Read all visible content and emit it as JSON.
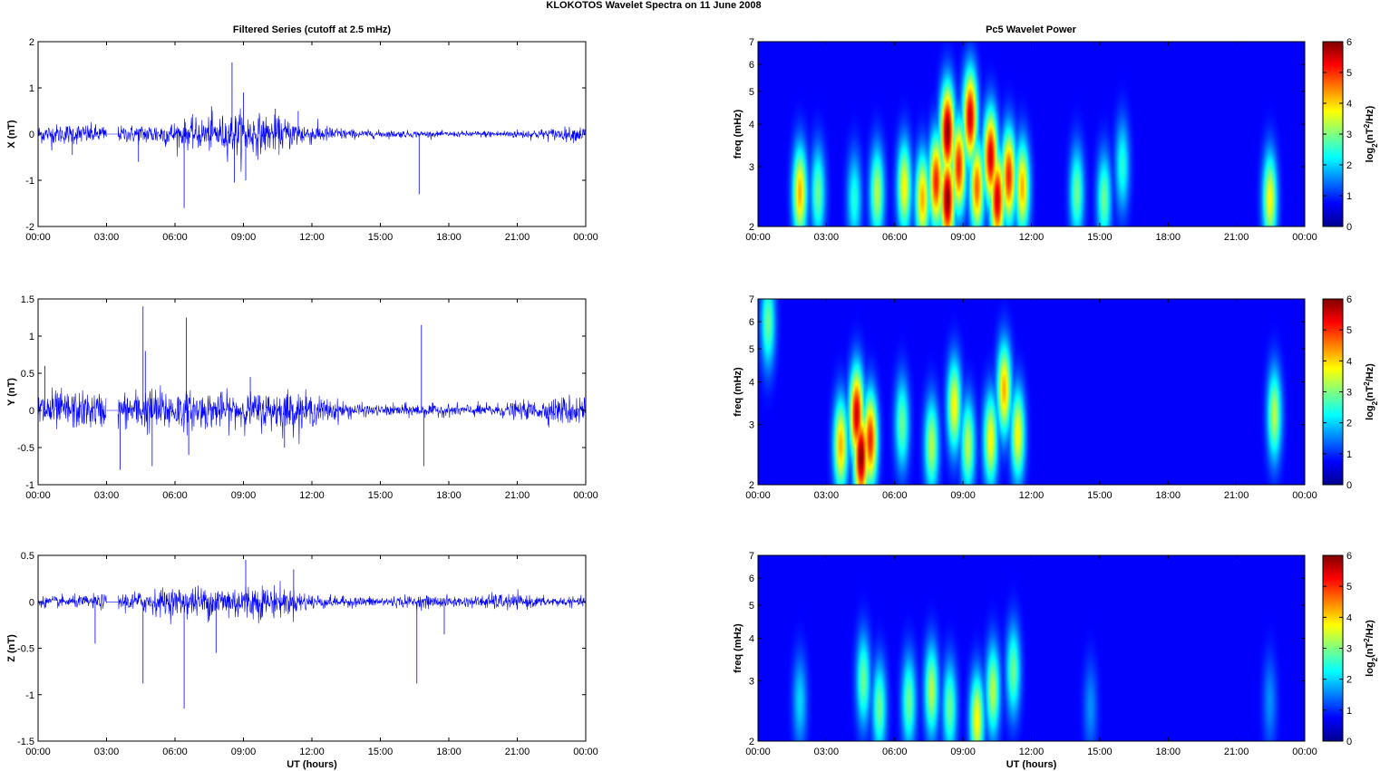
{
  "figure": {
    "title": "KLOKOTOS Wavelet Spectra on 11 June     2008",
    "left_column_title": "Filtered Series (cutoff at 2.5 mHz)",
    "right_column_title": "Pc5 Wavelet Power"
  },
  "colors": {
    "trace": "#0000ff",
    "axis": "#000000",
    "background": "#ffffff"
  },
  "chart_data": [
    {
      "type": "line",
      "panel": "time-series-x",
      "ylabel": "X (nT)",
      "xlabel": "",
      "ylim": [
        -2,
        2
      ],
      "yticks": [
        "-2",
        "-1",
        "0",
        "1",
        "2"
      ],
      "xticks": [
        "00:00",
        "03:00",
        "06:00",
        "09:00",
        "12:00",
        "15:00",
        "18:00",
        "21:00",
        "00:00"
      ],
      "xlim_hours": [
        0,
        24
      ],
      "gaps_hours": [
        [
          3.0,
          3.5
        ]
      ],
      "envelope": {
        "x_hours": [
          0,
          2,
          3.5,
          6,
          8,
          9,
          10,
          11,
          12,
          14,
          16,
          18,
          20,
          22,
          24
        ],
        "amplitude": [
          0.18,
          0.2,
          0.15,
          0.25,
          0.35,
          0.45,
          0.35,
          0.3,
          0.2,
          0.08,
          0.07,
          0.05,
          0.07,
          0.1,
          0.15
        ]
      },
      "spikes": [
        {
          "x_hours": 0.6,
          "y": -0.35
        },
        {
          "x_hours": 1.5,
          "y": -0.45
        },
        {
          "x_hours": 4.4,
          "y": -0.6
        },
        {
          "x_hours": 6.4,
          "y": -1.6
        },
        {
          "x_hours": 8.5,
          "y": 1.55
        },
        {
          "x_hours": 8.6,
          "y": -1.05
        },
        {
          "x_hours": 9.0,
          "y": 0.9
        },
        {
          "x_hours": 9.1,
          "y": -1.0
        },
        {
          "x_hours": 7.6,
          "y": 0.6
        },
        {
          "x_hours": 10.4,
          "y": 0.55
        },
        {
          "x_hours": 11.4,
          "y": 0.5
        },
        {
          "x_hours": 16.7,
          "y": -1.3
        }
      ]
    },
    {
      "type": "line",
      "panel": "time-series-y",
      "ylabel": "Y (nT)",
      "xlabel": "",
      "ylim": [
        -1,
        1.5
      ],
      "yticks": [
        "-1",
        "-0.5",
        "0",
        "0.5",
        "1",
        "1.5"
      ],
      "xticks": [
        "00:00",
        "03:00",
        "06:00",
        "09:00",
        "12:00",
        "15:00",
        "18:00",
        "21:00",
        "00:00"
      ],
      "xlim_hours": [
        0,
        24
      ],
      "gaps_hours": [
        [
          3.0,
          3.5
        ]
      ],
      "envelope": {
        "x_hours": [
          0,
          2,
          3.5,
          5,
          7,
          9,
          11,
          12,
          14,
          15,
          16,
          18,
          20,
          22,
          24
        ],
        "amplitude": [
          0.25,
          0.22,
          0.2,
          0.28,
          0.22,
          0.2,
          0.25,
          0.18,
          0.08,
          0.06,
          0.08,
          0.07,
          0.08,
          0.12,
          0.22
        ]
      },
      "spikes": [
        {
          "x_hours": 0.3,
          "y": 0.6
        },
        {
          "x_hours": 3.6,
          "y": -0.8
        },
        {
          "x_hours": 4.6,
          "y": 1.4
        },
        {
          "x_hours": 4.7,
          "y": 0.8
        },
        {
          "x_hours": 5.0,
          "y": -0.75
        },
        {
          "x_hours": 6.5,
          "y": 1.25
        },
        {
          "x_hours": 6.6,
          "y": -0.6
        },
        {
          "x_hours": 10.8,
          "y": -0.5
        },
        {
          "x_hours": 16.8,
          "y": 1.15
        },
        {
          "x_hours": 16.9,
          "y": -0.75
        },
        {
          "x_hours": 9.3,
          "y": 0.45
        }
      ]
    },
    {
      "type": "line",
      "panel": "time-series-z",
      "ylabel": "Z (nT)",
      "xlabel": "UT (hours)",
      "ylim": [
        -1.5,
        0.5
      ],
      "yticks": [
        "-1.5",
        "-1",
        "-0.5",
        "0",
        "0.5"
      ],
      "xticks": [
        "00:00",
        "03:00",
        "06:00",
        "09:00",
        "12:00",
        "15:00",
        "18:00",
        "21:00",
        "00:00"
      ],
      "xlim_hours": [
        0,
        24
      ],
      "gaps_hours": [
        [
          3.0,
          3.5
        ]
      ],
      "envelope": {
        "x_hours": [
          0,
          2,
          3.5,
          5,
          7,
          9,
          10.5,
          12,
          13,
          15,
          17,
          19,
          20,
          21,
          22,
          24
        ],
        "amplitude": [
          0.05,
          0.06,
          0.08,
          0.12,
          0.15,
          0.18,
          0.15,
          0.08,
          0.05,
          0.05,
          0.06,
          0.05,
          0.08,
          0.07,
          0.05,
          0.04
        ]
      },
      "spikes": [
        {
          "x_hours": 4.6,
          "y": -0.88
        },
        {
          "x_hours": 6.4,
          "y": -1.15
        },
        {
          "x_hours": 2.5,
          "y": -0.45
        },
        {
          "x_hours": 7.8,
          "y": -0.55
        },
        {
          "x_hours": 9.1,
          "y": 0.45
        },
        {
          "x_hours": 16.6,
          "y": -0.88
        },
        {
          "x_hours": 17.8,
          "y": -0.35
        },
        {
          "x_hours": 11.2,
          "y": 0.35
        }
      ]
    },
    {
      "type": "heatmap",
      "panel": "wavelet-x",
      "ylabel": "freq (mHz)",
      "xlabel": "",
      "ylim_mHz": [
        2,
        7
      ],
      "yscale": "log",
      "yticks": [
        "2",
        "3",
        "4",
        "5",
        "6",
        "7"
      ],
      "xticks": [
        "00:00",
        "03:00",
        "06:00",
        "09:00",
        "12:00",
        "15:00",
        "18:00",
        "21:00",
        "00:00"
      ],
      "clim": [
        0,
        6
      ],
      "colorbar_ticks": [
        "0",
        "1",
        "2",
        "3",
        "4",
        "5",
        "6"
      ],
      "colorbar_label": "log2(nT2/Hz)",
      "blobs": [
        {
          "t": 1.8,
          "f": 2.5,
          "power": 4.0
        },
        {
          "t": 2.6,
          "f": 2.5,
          "power": 2.5
        },
        {
          "t": 4.2,
          "f": 2.4,
          "power": 2.0
        },
        {
          "t": 5.2,
          "f": 2.5,
          "power": 3.0
        },
        {
          "t": 6.4,
          "f": 2.6,
          "power": 3.5
        },
        {
          "t": 7.2,
          "f": 2.4,
          "power": 4.0
        },
        {
          "t": 7.8,
          "f": 2.7,
          "power": 5.0
        },
        {
          "t": 8.3,
          "f": 3.8,
          "power": 6.0
        },
        {
          "t": 8.3,
          "f": 2.4,
          "power": 6.0
        },
        {
          "t": 8.8,
          "f": 3.0,
          "power": 5.0
        },
        {
          "t": 9.3,
          "f": 4.2,
          "power": 5.5
        },
        {
          "t": 9.6,
          "f": 2.6,
          "power": 4.5
        },
        {
          "t": 10.2,
          "f": 3.2,
          "power": 5.5
        },
        {
          "t": 10.5,
          "f": 2.4,
          "power": 5.5
        },
        {
          "t": 11.0,
          "f": 2.8,
          "power": 5.0
        },
        {
          "t": 11.6,
          "f": 2.6,
          "power": 4.0
        },
        {
          "t": 14.0,
          "f": 2.5,
          "power": 2.5
        },
        {
          "t": 15.2,
          "f": 2.4,
          "power": 2.5
        },
        {
          "t": 16.0,
          "f": 3.0,
          "power": 2.0
        },
        {
          "t": 22.5,
          "f": 2.4,
          "power": 3.5
        }
      ]
    },
    {
      "type": "heatmap",
      "panel": "wavelet-y",
      "ylabel": "freq (mHz)",
      "xlabel": "",
      "ylim_mHz": [
        2,
        7
      ],
      "yscale": "log",
      "yticks": [
        "2",
        "3",
        "4",
        "5",
        "6",
        "7"
      ],
      "xticks": [
        "00:00",
        "03:00",
        "06:00",
        "09:00",
        "12:00",
        "15:00",
        "18:00",
        "21:00",
        "00:00"
      ],
      "clim": [
        0,
        6
      ],
      "colorbar_ticks": [
        "0",
        "1",
        "2",
        "3",
        "4",
        "5",
        "6"
      ],
      "colorbar_label": "log2(nT2/Hz)",
      "blobs": [
        {
          "t": 0.4,
          "f": 6.0,
          "power": 2.5
        },
        {
          "t": 3.6,
          "f": 2.6,
          "power": 4.0
        },
        {
          "t": 4.3,
          "f": 3.2,
          "power": 5.5
        },
        {
          "t": 4.5,
          "f": 2.4,
          "power": 6.0
        },
        {
          "t": 4.9,
          "f": 2.7,
          "power": 5.0
        },
        {
          "t": 6.3,
          "f": 3.0,
          "power": 2.5
        },
        {
          "t": 7.6,
          "f": 2.6,
          "power": 3.0
        },
        {
          "t": 8.6,
          "f": 3.4,
          "power": 3.5
        },
        {
          "t": 9.2,
          "f": 2.6,
          "power": 3.0
        },
        {
          "t": 10.2,
          "f": 2.7,
          "power": 3.5
        },
        {
          "t": 10.8,
          "f": 3.8,
          "power": 4.0
        },
        {
          "t": 11.4,
          "f": 2.8,
          "power": 3.5
        },
        {
          "t": 22.7,
          "f": 3.2,
          "power": 3.0
        }
      ]
    },
    {
      "type": "heatmap",
      "panel": "wavelet-z",
      "ylabel": "freq (mHz)",
      "xlabel": "UT (hours)",
      "ylim_mHz": [
        2,
        7
      ],
      "yscale": "log",
      "yticks": [
        "2",
        "3",
        "4",
        "5",
        "6",
        "7"
      ],
      "xticks": [
        "00:00",
        "03:00",
        "06:00",
        "09:00",
        "12:00",
        "15:00",
        "18:00",
        "21:00",
        "00:00"
      ],
      "clim": [
        0,
        6
      ],
      "colorbar_ticks": [
        "0",
        "1",
        "2",
        "3",
        "4",
        "5",
        "6"
      ],
      "colorbar_label": "log2(nT2/Hz)",
      "blobs": [
        {
          "t": 1.8,
          "f": 2.6,
          "power": 1.5
        },
        {
          "t": 4.6,
          "f": 3.0,
          "power": 2.5
        },
        {
          "t": 5.3,
          "f": 2.5,
          "power": 2.5
        },
        {
          "t": 6.6,
          "f": 2.6,
          "power": 2.5
        },
        {
          "t": 7.6,
          "f": 2.8,
          "power": 3.0
        },
        {
          "t": 8.4,
          "f": 2.5,
          "power": 2.5
        },
        {
          "t": 9.6,
          "f": 2.3,
          "power": 3.5
        },
        {
          "t": 10.3,
          "f": 2.8,
          "power": 3.0
        },
        {
          "t": 11.2,
          "f": 3.2,
          "power": 2.5
        },
        {
          "t": 14.6,
          "f": 2.5,
          "power": 1.0
        },
        {
          "t": 22.5,
          "f": 2.6,
          "power": 1.0
        }
      ]
    }
  ]
}
